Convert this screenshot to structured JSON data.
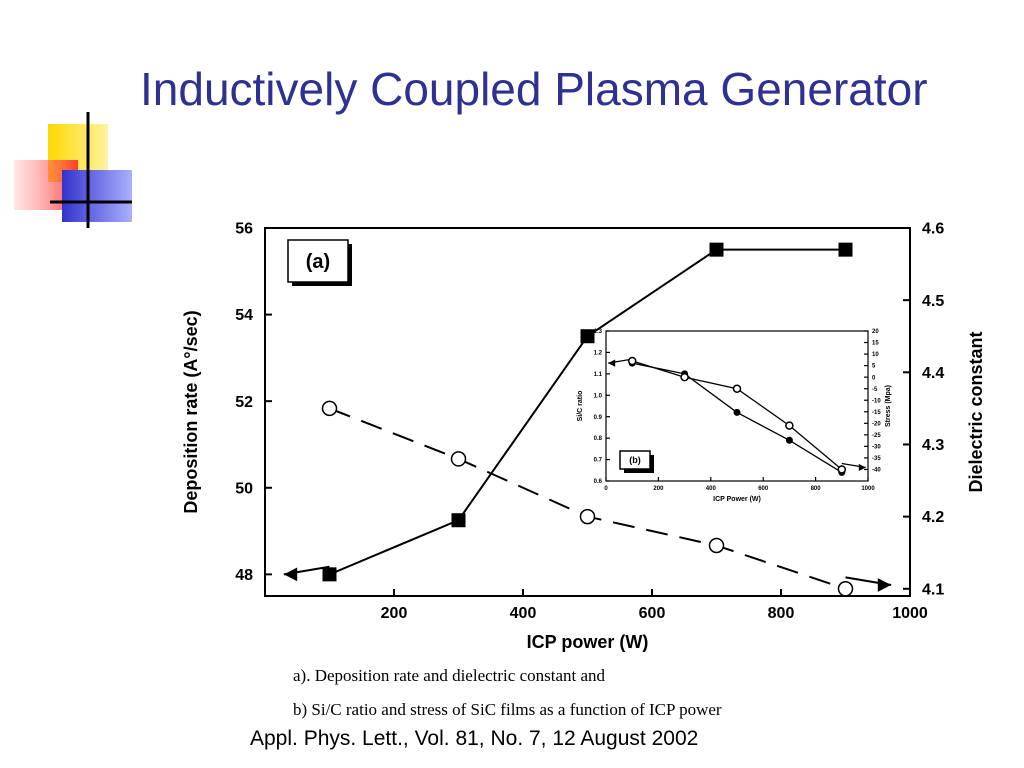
{
  "slide": {
    "title": "Inductively Coupled Plasma Generator",
    "caption_line1": "a). Deposition rate and dielectric constant and",
    "caption_line2": "b) Si/C ratio and stress of SiC films as a function of ICP power",
    "citation": "Appl. Phys. Lett., Vol. 81, No. 7, 12 August 2002",
    "accent_colors": {
      "title": "#2e3192",
      "yellow": "#ffd800",
      "red": "#ff3333",
      "blue": "#3333cc"
    }
  },
  "chart_data": [
    {
      "type": "line",
      "panel_label": "(a)",
      "xlabel": "ICP power (W)",
      "ylabel_left": "Deposition rate (A°/sec)",
      "ylabel_right": "Dielectric constant",
      "xlim": [
        0,
        1000
      ],
      "ylim_left": [
        47.5,
        56
      ],
      "ylim_right": [
        4.09,
        4.6
      ],
      "xticks": [
        200,
        400,
        600,
        800,
        1000
      ],
      "yticks_left": [
        48,
        50,
        52,
        54,
        56
      ],
      "yticks_right": [
        4.1,
        4.2,
        4.3,
        4.4,
        4.5,
        4.6
      ],
      "series": [
        {
          "axis": "left",
          "marker": "filled-square",
          "style": "solid",
          "x": [
            100,
            300,
            500,
            700,
            900
          ],
          "values": [
            48.0,
            49.25,
            53.5,
            55.5,
            55.5
          ]
        },
        {
          "axis": "right",
          "marker": "open-circle",
          "style": "dashed",
          "x": [
            100,
            300,
            500,
            700,
            900
          ],
          "values": [
            4.35,
            4.28,
            4.2,
            4.16,
            4.1
          ]
        }
      ]
    },
    {
      "type": "line",
      "panel_label": "(b)",
      "xlabel": "ICP Power (W)",
      "ylabel_left": "Si/C ratio",
      "ylabel_right": "Stress (Mpa)",
      "xlim": [
        0,
        1000
      ],
      "ylim_left": [
        0.6,
        1.3
      ],
      "ylim_right": [
        -45,
        20
      ],
      "xticks": [
        0,
        200,
        400,
        600,
        800,
        1000
      ],
      "yticks_left": [
        0.6,
        0.7,
        0.8,
        0.9,
        1.0,
        1.1,
        1.2,
        1.3
      ],
      "yticks_right": [
        -40,
        -35,
        -30,
        -25,
        -20,
        -15,
        -10,
        -5,
        0,
        5,
        10,
        15,
        20
      ],
      "series": [
        {
          "axis": "left",
          "marker": "filled-circle",
          "style": "solid",
          "x": [
            100,
            300,
            500,
            700,
            900
          ],
          "values": [
            1.15,
            1.1,
            0.92,
            0.79,
            0.64
          ]
        },
        {
          "axis": "right",
          "marker": "open-circle",
          "style": "solid",
          "x": [
            100,
            300,
            500,
            700,
            900
          ],
          "values": [
            7,
            0,
            -5,
            -21,
            -40
          ]
        }
      ]
    }
  ]
}
